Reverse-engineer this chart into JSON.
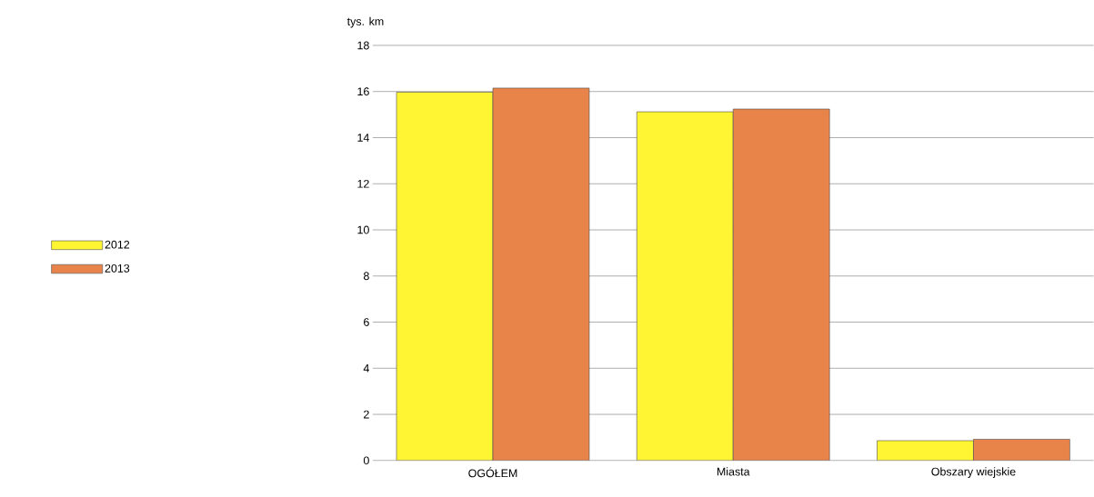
{
  "chart_data": {
    "type": "bar",
    "ylabel": "tys. km",
    "categories": [
      "OGÓŁEM",
      "Miasta",
      "Obszary wiejskie"
    ],
    "series": [
      {
        "name": "2012",
        "color": "#fff533",
        "values": [
          15.97,
          15.12,
          0.86
        ]
      },
      {
        "name": "2013",
        "color": "#e8834a",
        "values": [
          16.15,
          15.24,
          0.92
        ]
      }
    ],
    "ylim": [
      0,
      18
    ],
    "yticks": [
      0,
      2,
      4,
      6,
      8,
      10,
      12,
      14,
      16,
      18
    ],
    "grid": "y",
    "legend": "left"
  }
}
